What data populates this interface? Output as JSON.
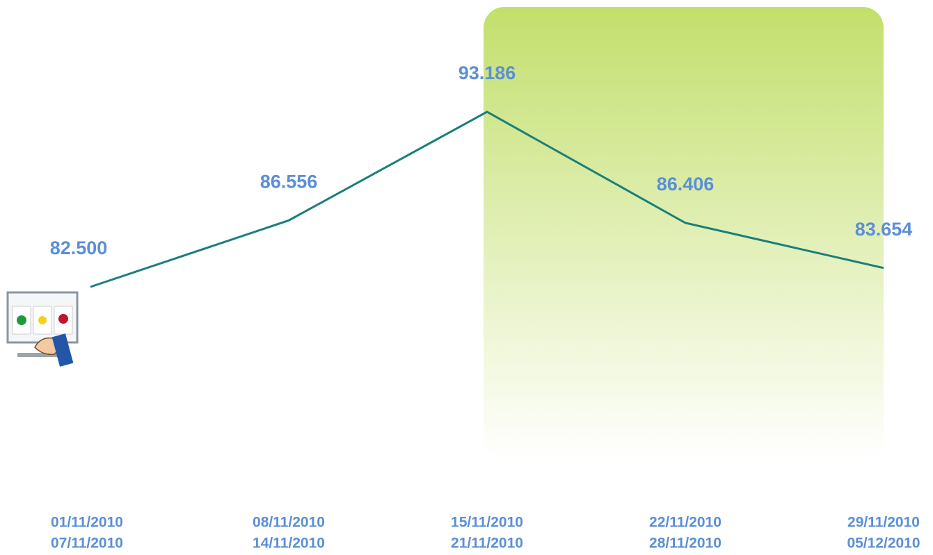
{
  "chart_data": {
    "type": "line",
    "categories": [
      [
        "01/11/2010",
        "07/11/2010"
      ],
      [
        "08/11/2010",
        "14/11/2010"
      ],
      [
        "15/11/2010",
        "21/11/2010"
      ],
      [
        "22/11/2010",
        "28/11/2010"
      ],
      [
        "29/11/2010",
        "05/12/2010"
      ]
    ],
    "values": [
      82.5,
      86.556,
      93.186,
      86.406,
      83.654
    ],
    "value_labels": [
      "82.500",
      "86.556",
      "93.186",
      "86.406",
      "83.654"
    ],
    "color": "#1a7f7a",
    "highlight_from": 2
  }
}
